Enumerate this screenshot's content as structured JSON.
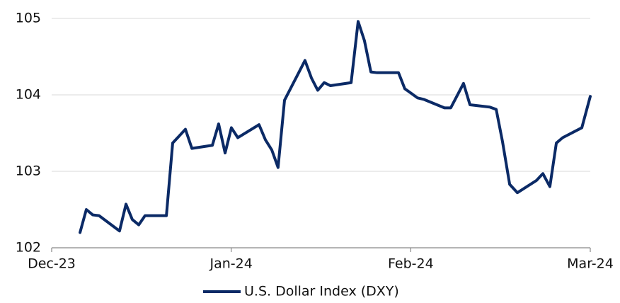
{
  "chart_data": {
    "type": "line",
    "x": [
      0.158,
      0.193,
      0.229,
      0.264,
      0.378,
      0.414,
      0.449,
      0.485,
      0.52,
      0.639,
      0.674,
      0.745,
      0.781,
      0.895,
      0.93,
      0.966,
      1.001,
      1.037,
      1.155,
      1.191,
      1.226,
      1.261,
      1.297,
      1.411,
      1.447,
      1.482,
      1.518,
      1.553,
      1.668,
      1.707,
      1.742,
      1.778,
      1.813,
      1.932,
      1.967,
      2.003,
      2.038,
      2.074,
      2.188,
      2.223,
      2.294,
      2.33,
      2.44,
      2.476,
      2.511,
      2.551,
      2.594,
      2.7,
      2.736,
      2.775,
      2.811,
      2.846,
      2.953,
      3.0
    ],
    "series": [
      {
        "name": "U.S. Dollar Index (DXY)",
        "color": "#0b2a66",
        "values": [
          102.2,
          102.5,
          102.43,
          102.42,
          102.22,
          102.57,
          102.37,
          102.3,
          102.42,
          102.42,
          103.37,
          103.55,
          103.3,
          103.34,
          103.62,
          103.24,
          103.57,
          103.44,
          103.61,
          103.41,
          103.28,
          103.05,
          103.93,
          104.45,
          104.22,
          104.06,
          104.16,
          104.12,
          104.16,
          104.96,
          104.71,
          104.3,
          104.29,
          104.29,
          104.08,
          104.02,
          103.96,
          103.94,
          103.83,
          103.83,
          104.15,
          103.87,
          103.84,
          103.81,
          103.39,
          102.83,
          102.72,
          102.88,
          102.97,
          102.8,
          103.37,
          103.44,
          103.57,
          103.98
        ]
      }
    ],
    "xlim": [
      0,
      3
    ],
    "xticks": [
      {
        "value": 0,
        "label": "Dec-23"
      },
      {
        "value": 1,
        "label": "Jan-24"
      },
      {
        "value": 2,
        "label": "Feb-24"
      },
      {
        "value": 3,
        "label": "Mar-24"
      }
    ],
    "ylim": [
      102,
      105
    ],
    "yticks": [
      102,
      103,
      104,
      105
    ],
    "grid": true,
    "legend": "bottom"
  }
}
